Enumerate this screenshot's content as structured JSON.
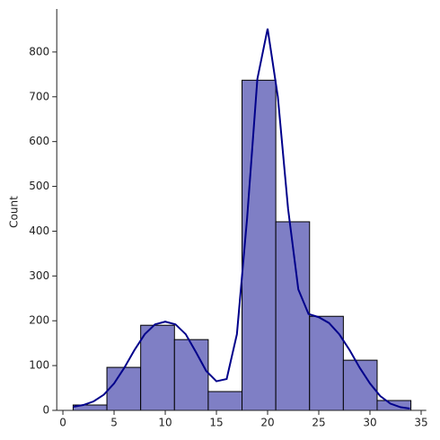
{
  "chart_data": {
    "type": "histogram",
    "ylabel": "Count",
    "bins": [
      1,
      4.3,
      7.6,
      10.9,
      14.2,
      17.5,
      20.8,
      24.1,
      27.4,
      30.7,
      34.0
    ],
    "counts": [
      12,
      96,
      190,
      158,
      42,
      737,
      421,
      210,
      112,
      22
    ],
    "color": "#7f7fc5",
    "edgecolor": "#000000",
    "kde": {
      "color": "#00008b",
      "x": [
        1,
        2,
        3,
        4,
        5,
        6,
        7,
        8,
        9,
        10,
        11,
        12,
        13,
        14,
        15,
        16,
        17,
        18,
        19,
        20,
        21,
        22,
        23,
        24,
        25,
        26,
        27,
        28,
        29,
        30,
        31,
        32,
        33,
        33.9
      ],
      "values": [
        8,
        12,
        20,
        35,
        60,
        95,
        135,
        170,
        192,
        198,
        192,
        170,
        130,
        88,
        65,
        70,
        170,
        430,
        740,
        852,
        700,
        450,
        270,
        215,
        208,
        195,
        170,
        135,
        95,
        60,
        32,
        15,
        7,
        4
      ]
    },
    "xlim": [
      -0.6,
      35.5
    ],
    "ylim": [
      0,
      896
    ],
    "xticks": [
      0,
      5,
      10,
      15,
      20,
      25,
      30,
      35
    ],
    "yticks": [
      0,
      100,
      200,
      300,
      400,
      500,
      600,
      700,
      800
    ]
  }
}
